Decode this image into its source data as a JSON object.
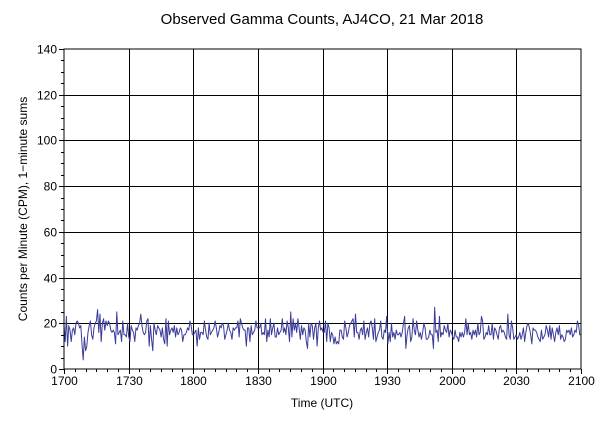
{
  "chart_data": {
    "type": "line",
    "title": "Observed Gamma Counts, AJ4CO, 21 Mar 2018",
    "xlabel": "Time (UTC)",
    "ylabel": "Counts per Minute (CPM), 1−minute sums",
    "x_tick_labels": [
      "1700",
      "1730",
      "1800",
      "1830",
      "1900",
      "1930",
      "2000",
      "2030",
      "2100"
    ],
    "y_tick_labels": [
      "0",
      "20",
      "40",
      "60",
      "80",
      "100",
      "120",
      "140"
    ],
    "x_unit": "minutes from 1700 UTC",
    "xlim": [
      0,
      240
    ],
    "ylim": [
      0,
      140
    ],
    "grid": true,
    "line_color": "#3b3b9a",
    "series": [
      {
        "values": [
          19,
          12,
          23,
          10,
          19,
          17,
          12,
          17,
          18,
          15,
          20,
          21,
          20,
          18,
          19,
          11,
          4,
          14,
          8,
          10,
          16,
          19,
          21,
          15,
          13,
          18,
          20,
          21,
          26,
          16,
          24,
          12,
          20,
          22,
          17,
          21,
          19,
          21,
          20,
          17,
          16,
          17,
          16,
          11,
          25,
          15,
          16,
          17,
          12,
          21,
          15,
          15,
          14,
          20,
          14,
          12,
          19,
          17,
          16,
          12,
          18,
          17,
          19,
          20,
          24,
          19,
          16,
          15,
          16,
          21,
          22,
          10,
          19,
          13,
          8,
          20,
          17,
          15,
          19,
          18,
          17,
          14,
          18,
          13,
          11,
          22,
          10,
          21,
          15,
          17,
          18,
          16,
          19,
          14,
          18,
          15,
          16,
          18,
          17,
          12,
          15,
          15,
          16,
          18,
          17,
          21,
          19,
          15,
          15,
          16,
          17,
          10,
          18,
          13,
          16,
          16,
          15,
          21,
          17,
          14,
          13,
          20,
          15,
          16,
          17,
          18,
          21,
          18,
          14,
          16,
          19,
          18,
          20,
          19,
          13,
          15,
          17,
          20,
          17,
          16,
          13,
          18,
          17,
          18,
          18,
          21,
          14,
          22,
          20,
          18,
          17,
          17,
          10,
          18,
          18,
          12,
          19,
          15,
          16,
          17,
          21,
          18,
          18,
          18,
          20,
          15,
          16,
          15,
          22,
          12,
          17,
          14,
          22,
          15,
          18,
          20,
          14,
          14,
          18,
          15,
          16,
          17,
          22,
          16,
          18,
          15,
          21,
          18,
          12,
          25,
          14,
          22,
          17,
          20,
          16,
          22,
          18,
          13,
          19,
          15,
          18,
          17,
          12,
          9,
          20,
          14,
          20,
          19,
          13,
          18,
          20,
          10,
          18,
          21,
          17,
          18,
          16,
          16,
          21,
          12,
          20,
          18,
          12,
          16,
          15,
          11,
          14,
          11,
          12,
          11,
          17,
          17,
          14,
          13,
          21,
          18,
          14,
          16,
          19,
          20,
          21,
          22,
          14,
          24,
          16,
          16,
          13,
          17,
          18,
          15,
          21,
          13,
          16,
          18,
          14,
          20,
          21,
          18,
          13,
          22,
          12,
          14,
          16,
          17,
          21,
          14,
          13,
          17,
          16,
          23,
          11,
          16,
          12,
          20,
          14,
          16,
          13,
          17,
          15,
          15,
          16,
          14,
          16,
          20,
          23,
          9,
          15,
          18,
          19,
          12,
          14,
          22,
          17,
          15,
          21,
          17,
          14,
          16,
          13,
          16,
          20,
          18,
          13,
          13,
          14,
          17,
          15,
          15,
          9,
          27,
          16,
          17,
          12,
          23,
          14,
          16,
          15,
          19,
          17,
          16,
          20,
          14,
          17,
          16,
          14,
          13,
          17,
          14,
          14,
          12,
          16,
          14,
          16,
          14,
          16,
          22,
          15,
          20,
          15,
          16,
          13,
          17,
          15,
          17,
          14,
          20,
          15,
          16,
          23,
          21,
          13,
          14,
          16,
          15,
          19,
          15,
          15,
          20,
          13,
          18,
          17,
          15,
          13,
          18,
          19,
          16,
          17,
          16,
          14,
          13,
          24,
          15,
          13,
          21,
          18,
          13,
          14,
          15,
          13,
          14,
          16,
          13,
          15,
          18,
          12,
          16,
          19,
          20,
          18,
          15,
          11,
          18,
          17,
          17,
          16,
          14,
          13,
          12,
          17,
          13,
          14,
          15,
          19,
          17,
          14,
          19,
          13,
          18,
          15,
          12,
          16,
          18,
          15,
          19,
          13,
          15,
          14,
          12,
          13,
          17,
          16,
          17,
          15,
          18,
          14,
          15,
          17,
          16,
          21,
          19,
          15,
          15
        ]
      }
    ]
  }
}
